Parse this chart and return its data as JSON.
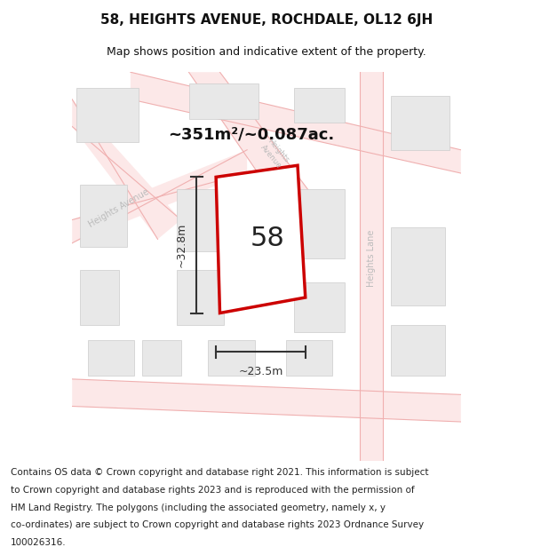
{
  "title": "58, HEIGHTS AVENUE, ROCHDALE, OL12 6JH",
  "subtitle": "Map shows position and indicative extent of the property.",
  "area_text": "~351m²/~0.087ac.",
  "width_text": "~23.5m",
  "height_text": "~32.8m",
  "number_text": "58",
  "map_bg": "#ffffff",
  "road_fill": "#fce8e8",
  "building_fill": "#e8e8e8",
  "building_edge": "#cccccc",
  "plot_outline_color": "#cc0000",
  "title_color": "#111111",
  "road_label_color": "#bbbbbb",
  "dim_color": "#333333",
  "footer_color": "#222222",
  "title_fontsize": 11,
  "subtitle_fontsize": 9,
  "footer_fontsize": 7.5,
  "footer_lines": [
    "Contains OS data © Crown copyright and database right 2021. This information is subject",
    "to Crown copyright and database rights 2023 and is reproduced with the permission of",
    "HM Land Registry. The polygons (including the associated geometry, namely x, y",
    "co-ordinates) are subject to Crown copyright and database rights 2023 Ordnance Survey",
    "100026316."
  ]
}
